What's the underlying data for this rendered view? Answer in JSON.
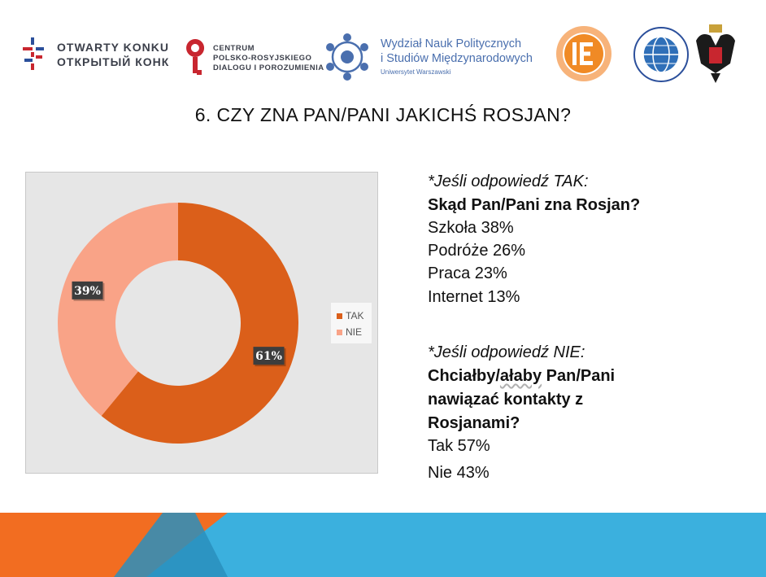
{
  "logos": {
    "otwarty": {
      "line1": "OTWARTY KONKURS",
      "line2": "ОТКРЫТЫЙ КОНКУРС"
    },
    "centrum": {
      "line1": "CENTRUM",
      "line2": "POLSKO-ROSYJSKIEGO",
      "line3": "DIALOGU I POROZUMIENIA"
    },
    "wnp": {
      "line1": "Wydział Nauk Politycznych",
      "line2": "i Studiów Międzynarodowych",
      "line3": "Uniwersytet Warszawski"
    },
    "colors": {
      "red": "#c8262f",
      "blue": "#4a6fae",
      "orange": "#f08a25",
      "navy": "#2b4f9b"
    }
  },
  "title": "6. CZY ZNA PAN/PANI JAKICHŚ ROSJAN?",
  "chart_data": {
    "type": "pie",
    "variant": "donut",
    "categories": [
      "TAK",
      "NIE"
    ],
    "values": [
      61,
      39
    ],
    "labels": [
      "61%",
      "39%"
    ],
    "colors": [
      "#db5f1a",
      "#f9a387"
    ],
    "legend_position": "right",
    "background": "#e6e6e6"
  },
  "right_text": {
    "yes_heading": "*Jeśli odpowiedź TAK:",
    "yes_question": "Skąd Pan/Pani zna Rosjan?",
    "yes_items": [
      "Szkoła 38%",
      "Podróże 26%",
      "Praca 23%",
      "Internet 13%"
    ],
    "no_heading": "*Jeśli odpowiedź NIE:",
    "no_question_pre": "Chciałby/",
    "no_question_squiggle": "ałaby",
    "no_question_post": " Pan/Pani",
    "no_question_line2": "nawiązać kontakty z",
    "no_question_line3": "Rosjanami?",
    "no_items": [
      "Tak 57%",
      "Nie 43%"
    ]
  },
  "footer": {
    "orange": "#f26d21",
    "blue": "#3bb0de",
    "teal": "#2a8fbd"
  }
}
